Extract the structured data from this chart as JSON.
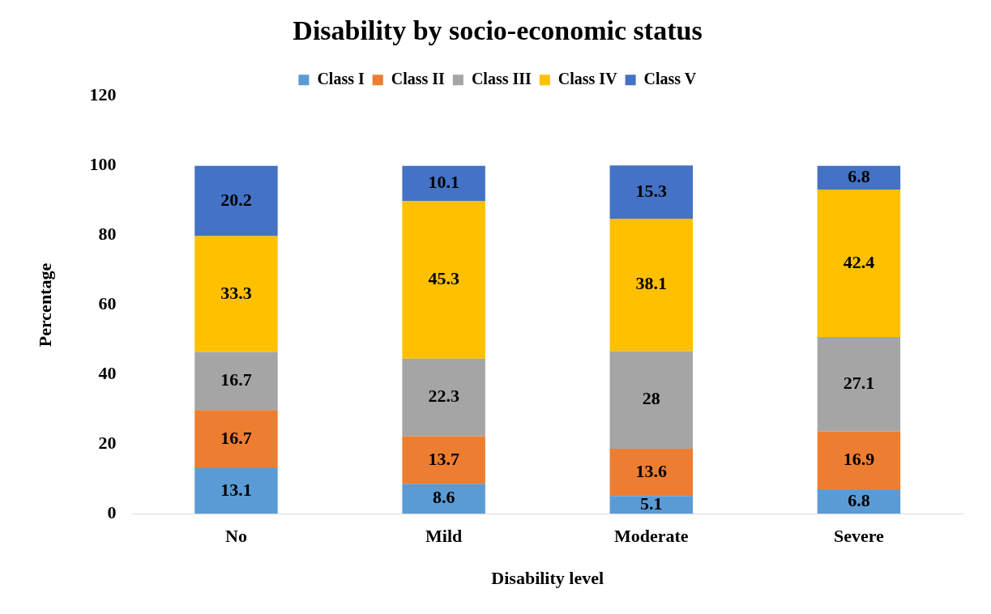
{
  "chart_data": {
    "type": "bar",
    "title": "Disability by socio-economic status",
    "xlabel": "Disability level",
    "ylabel": "Percentage",
    "categories": [
      "No",
      "Mild",
      "Moderate",
      "Severe"
    ],
    "series": [
      {
        "name": "Class I",
        "color": "#5b9bd5",
        "values": [
          13.1,
          8.6,
          5.1,
          6.8
        ]
      },
      {
        "name": "Class II",
        "color": "#ed7d31",
        "values": [
          16.7,
          13.7,
          13.6,
          16.9
        ]
      },
      {
        "name": "Class III",
        "color": "#a5a5a5",
        "values": [
          16.7,
          22.3,
          28,
          27.1
        ]
      },
      {
        "name": "Class IV",
        "color": "#ffc000",
        "values": [
          33.3,
          45.3,
          38.1,
          42.4
        ]
      },
      {
        "name": "Class V",
        "color": "#4472c4",
        "values": [
          20.2,
          10.1,
          15.3,
          6.8
        ]
      }
    ],
    "stacked": true,
    "ylim": [
      0,
      120
    ],
    "yticks": [
      0,
      20,
      40,
      60,
      80,
      100,
      120
    ],
    "grid": false,
    "legend": "top",
    "data_labels": true
  }
}
